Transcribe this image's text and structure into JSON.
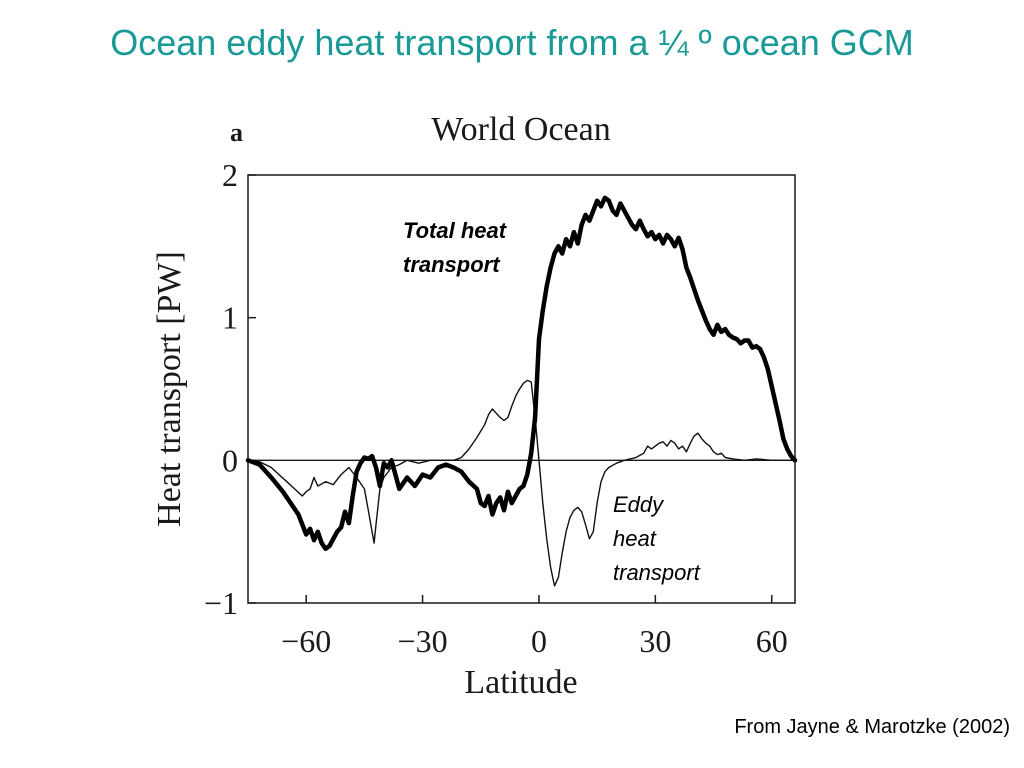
{
  "slide": {
    "title": "Ocean eddy heat transport from a ¼ º ocean GCM",
    "citation": "From Jayne & Marotzke (2002)"
  },
  "chart_data": {
    "type": "line",
    "panel_label": "a",
    "title": "World Ocean",
    "xlabel": "Latitude",
    "ylabel": "Heat transport [PW]",
    "xlim": [
      -75,
      66
    ],
    "ylim": [
      -1,
      2
    ],
    "xticks": [
      -60,
      -30,
      0,
      30,
      60
    ],
    "xtick_labels": [
      "−60",
      "−30",
      "0",
      "30",
      "60"
    ],
    "yticks": [
      -1,
      0,
      1,
      2
    ],
    "ytick_labels": [
      "−1",
      "0",
      "1",
      "2"
    ],
    "zero_line": true,
    "grid": false,
    "annotations": [
      {
        "lines": [
          "Total heat",
          "transport"
        ],
        "bold": true,
        "italic": true
      },
      {
        "lines": [
          "Eddy",
          "heat",
          "transport"
        ],
        "bold": false,
        "italic": true
      }
    ],
    "series": [
      {
        "name": "Total heat transport",
        "color": "#000000",
        "weight": "thick",
        "points": [
          [
            -75,
            0
          ],
          [
            -72,
            -0.03
          ],
          [
            -69,
            -0.12
          ],
          [
            -66,
            -0.22
          ],
          [
            -64,
            -0.3
          ],
          [
            -62,
            -0.38
          ],
          [
            -61,
            -0.45
          ],
          [
            -60,
            -0.52
          ],
          [
            -59,
            -0.48
          ],
          [
            -58,
            -0.56
          ],
          [
            -57,
            -0.5
          ],
          [
            -56,
            -0.58
          ],
          [
            -55,
            -0.62
          ],
          [
            -54,
            -0.6
          ],
          [
            -53,
            -0.55
          ],
          [
            -52,
            -0.5
          ],
          [
            -51,
            -0.47
          ],
          [
            -50,
            -0.36
          ],
          [
            -49,
            -0.44
          ],
          [
            -48,
            -0.25
          ],
          [
            -47,
            -0.08
          ],
          [
            -46,
            -0.02
          ],
          [
            -45,
            0.02
          ],
          [
            -44,
            0.01
          ],
          [
            -43,
            0.03
          ],
          [
            -42,
            -0.05
          ],
          [
            -41,
            -0.18
          ],
          [
            -40,
            -0.02
          ],
          [
            -39,
            -0.05
          ],
          [
            -38,
            0.0
          ],
          [
            -37,
            -0.1
          ],
          [
            -36,
            -0.2
          ],
          [
            -34,
            -0.12
          ],
          [
            -32,
            -0.18
          ],
          [
            -30,
            -0.1
          ],
          [
            -28,
            -0.12
          ],
          [
            -26,
            -0.05
          ],
          [
            -24,
            -0.03
          ],
          [
            -22,
            -0.05
          ],
          [
            -20,
            -0.08
          ],
          [
            -18,
            -0.15
          ],
          [
            -16,
            -0.2
          ],
          [
            -15,
            -0.3
          ],
          [
            -14,
            -0.32
          ],
          [
            -13,
            -0.25
          ],
          [
            -12,
            -0.38
          ],
          [
            -11,
            -0.3
          ],
          [
            -10,
            -0.26
          ],
          [
            -9,
            -0.35
          ],
          [
            -8,
            -0.22
          ],
          [
            -7,
            -0.3
          ],
          [
            -6,
            -0.25
          ],
          [
            -5,
            -0.2
          ],
          [
            -4,
            -0.18
          ],
          [
            -3,
            -0.1
          ],
          [
            -2,
            0.05
          ],
          [
            -1,
            0.3
          ],
          [
            0,
            0.85
          ],
          [
            1,
            1.05
          ],
          [
            2,
            1.22
          ],
          [
            3,
            1.35
          ],
          [
            4,
            1.45
          ],
          [
            5,
            1.5
          ],
          [
            6,
            1.45
          ],
          [
            7,
            1.55
          ],
          [
            8,
            1.5
          ],
          [
            9,
            1.6
          ],
          [
            10,
            1.52
          ],
          [
            11,
            1.65
          ],
          [
            12,
            1.72
          ],
          [
            13,
            1.68
          ],
          [
            14,
            1.75
          ],
          [
            15,
            1.82
          ],
          [
            16,
            1.78
          ],
          [
            17,
            1.84
          ],
          [
            18,
            1.82
          ],
          [
            19,
            1.75
          ],
          [
            20,
            1.72
          ],
          [
            21,
            1.8
          ],
          [
            22,
            1.75
          ],
          [
            23,
            1.7
          ],
          [
            24,
            1.65
          ],
          [
            25,
            1.62
          ],
          [
            26,
            1.68
          ],
          [
            27,
            1.62
          ],
          [
            28,
            1.57
          ],
          [
            29,
            1.6
          ],
          [
            30,
            1.55
          ],
          [
            31,
            1.58
          ],
          [
            32,
            1.52
          ],
          [
            33,
            1.58
          ],
          [
            34,
            1.55
          ],
          [
            35,
            1.5
          ],
          [
            36,
            1.56
          ],
          [
            37,
            1.48
          ],
          [
            38,
            1.35
          ],
          [
            39,
            1.28
          ],
          [
            40,
            1.2
          ],
          [
            41,
            1.12
          ],
          [
            42,
            1.05
          ],
          [
            43,
            0.98
          ],
          [
            44,
            0.92
          ],
          [
            45,
            0.88
          ],
          [
            46,
            0.95
          ],
          [
            47,
            0.9
          ],
          [
            48,
            0.92
          ],
          [
            49,
            0.88
          ],
          [
            50,
            0.86
          ],
          [
            51,
            0.85
          ],
          [
            52,
            0.82
          ],
          [
            53,
            0.84
          ],
          [
            54,
            0.84
          ],
          [
            55,
            0.79
          ],
          [
            56,
            0.8
          ],
          [
            57,
            0.78
          ],
          [
            58,
            0.72
          ],
          [
            59,
            0.64
          ],
          [
            60,
            0.52
          ],
          [
            61,
            0.4
          ],
          [
            62,
            0.28
          ],
          [
            63,
            0.15
          ],
          [
            64,
            0.08
          ],
          [
            65,
            0.03
          ],
          [
            66,
            0.0
          ]
        ]
      },
      {
        "name": "Eddy heat transport",
        "color": "#000000",
        "weight": "thin",
        "points": [
          [
            -75,
            0
          ],
          [
            -72,
            -0.01
          ],
          [
            -69,
            -0.05
          ],
          [
            -67,
            -0.1
          ],
          [
            -65,
            -0.15
          ],
          [
            -63,
            -0.2
          ],
          [
            -61,
            -0.25
          ],
          [
            -60,
            -0.22
          ],
          [
            -59,
            -0.2
          ],
          [
            -58,
            -0.12
          ],
          [
            -57,
            -0.18
          ],
          [
            -55,
            -0.15
          ],
          [
            -53,
            -0.17
          ],
          [
            -51,
            -0.1
          ],
          [
            -49,
            -0.05
          ],
          [
            -47,
            -0.12
          ],
          [
            -45,
            -0.2
          ],
          [
            -44,
            -0.35
          ],
          [
            -43,
            -0.5
          ],
          [
            -42.5,
            -0.58
          ],
          [
            -42,
            -0.45
          ],
          [
            -41,
            -0.2
          ],
          [
            -40,
            -0.12
          ],
          [
            -38,
            -0.05
          ],
          [
            -36,
            -0.03
          ],
          [
            -34,
            0.0
          ],
          [
            -31,
            -0.02
          ],
          [
            -28,
            0.0
          ],
          [
            -24,
            0.0
          ],
          [
            -22,
            0.0
          ],
          [
            -20,
            0.02
          ],
          [
            -18,
            0.08
          ],
          [
            -16,
            0.16
          ],
          [
            -14,
            0.25
          ],
          [
            -13,
            0.32
          ],
          [
            -12,
            0.36
          ],
          [
            -11,
            0.33
          ],
          [
            -10,
            0.3
          ],
          [
            -9,
            0.28
          ],
          [
            -8,
            0.3
          ],
          [
            -7,
            0.38
          ],
          [
            -6,
            0.45
          ],
          [
            -5,
            0.5
          ],
          [
            -4,
            0.54
          ],
          [
            -3,
            0.56
          ],
          [
            -2,
            0.55
          ],
          [
            -1,
            0.3
          ],
          [
            0,
            0.0
          ],
          [
            1,
            -0.3
          ],
          [
            2,
            -0.55
          ],
          [
            3,
            -0.75
          ],
          [
            4,
            -0.88
          ],
          [
            5,
            -0.82
          ],
          [
            6,
            -0.65
          ],
          [
            7,
            -0.5
          ],
          [
            8,
            -0.4
          ],
          [
            9,
            -0.35
          ],
          [
            10,
            -0.33
          ],
          [
            11,
            -0.36
          ],
          [
            12,
            -0.45
          ],
          [
            13,
            -0.55
          ],
          [
            14,
            -0.5
          ],
          [
            15,
            -0.3
          ],
          [
            16,
            -0.15
          ],
          [
            17,
            -0.08
          ],
          [
            18,
            -0.05
          ],
          [
            20,
            -0.02
          ],
          [
            22,
            0.0
          ],
          [
            25,
            0.02
          ],
          [
            27,
            0.05
          ],
          [
            28,
            0.1
          ],
          [
            29,
            0.08
          ],
          [
            30,
            0.1
          ],
          [
            31,
            0.12
          ],
          [
            32,
            0.13
          ],
          [
            33,
            0.1
          ],
          [
            34,
            0.14
          ],
          [
            35,
            0.12
          ],
          [
            36,
            0.08
          ],
          [
            37,
            0.1
          ],
          [
            38,
            0.06
          ],
          [
            39,
            0.12
          ],
          [
            40,
            0.17
          ],
          [
            41,
            0.19
          ],
          [
            42,
            0.15
          ],
          [
            43,
            0.12
          ],
          [
            44,
            0.1
          ],
          [
            45,
            0.06
          ],
          [
            46,
            0.04
          ],
          [
            47,
            0.05
          ],
          [
            48,
            0.02
          ],
          [
            50,
            0.01
          ],
          [
            53,
            0.0
          ],
          [
            56,
            0.01
          ],
          [
            60,
            0.0
          ],
          [
            66,
            0.0
          ]
        ]
      }
    ]
  }
}
